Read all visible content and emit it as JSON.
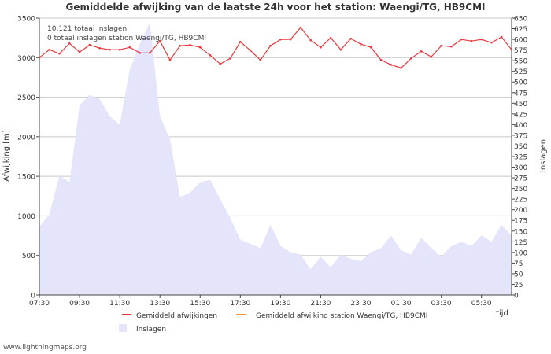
{
  "chart_data": {
    "type": "line",
    "title": "Gemiddelde afwijking van de laatste 24h voor het station: Waengi/TG, HB9CMI",
    "ylabel_left": "Afwijking  [m]",
    "ylabel_right": "Inslagen",
    "xlabel": "tijd",
    "ylim_left": [
      0,
      3500
    ],
    "ylim_right": [
      0,
      650
    ],
    "yticks_left": [
      0,
      500,
      1000,
      1500,
      2000,
      2500,
      3000,
      3500
    ],
    "yticks_right": [
      0,
      25,
      50,
      75,
      100,
      125,
      150,
      175,
      200,
      225,
      250,
      275,
      300,
      325,
      350,
      375,
      400,
      425,
      450,
      475,
      500,
      525,
      550,
      575,
      600,
      625,
      650
    ],
    "x_hours": [
      7.5,
      8,
      8.5,
      9,
      9.5,
      10,
      10.5,
      11,
      11.5,
      12,
      12.5,
      13,
      13.5,
      14,
      14.5,
      15,
      15.5,
      16,
      16.5,
      17,
      17.5,
      18,
      18.5,
      19,
      19.5,
      20,
      20.5,
      21,
      21.5,
      22,
      22.5,
      23,
      23.5,
      24,
      24.5,
      25,
      25.5,
      26,
      26.5,
      27,
      27.5,
      28,
      28.5,
      29,
      29.5,
      30,
      30.5,
      31
    ],
    "xlim_hours": [
      7.5,
      31
    ],
    "xtick_hours": [
      7.5,
      9.5,
      11.5,
      13.5,
      15.5,
      17.5,
      19.5,
      21.5,
      23.5,
      25.5,
      27.5,
      29.5
    ],
    "xtick_labels": [
      "07:30",
      "09:30",
      "11:30",
      "13:30",
      "15:30",
      "17:30",
      "19:30",
      "21:30",
      "23:30",
      "01:30",
      "03:30",
      "05:30"
    ],
    "annotations": [
      "10.121 totaal inslagen",
      "0 totaal inslagen station Waengi/TG, HB9CMI"
    ],
    "series": [
      {
        "name": "Gemiddeld afwijkingen",
        "axis": "left",
        "color": "#e8383d",
        "values": [
          3000,
          3100,
          3050,
          3180,
          3070,
          3160,
          3120,
          3100,
          3100,
          3130,
          3060,
          3060,
          3210,
          2970,
          3150,
          3160,
          3130,
          3030,
          2920,
          2990,
          3200,
          3090,
          2970,
          3150,
          3230,
          3230,
          3380,
          3220,
          3130,
          3250,
          3100,
          3240,
          3170,
          3130,
          2970,
          2910,
          2870,
          2990,
          3080,
          3010,
          3150,
          3140,
          3230,
          3210,
          3230,
          3190,
          3260,
          3100
        ]
      },
      {
        "name": "Gemiddeld afwijking station Waengi/TG, HB9CMI",
        "axis": "left",
        "color": "#f59a3e",
        "values": []
      },
      {
        "name": "Inslagen",
        "axis": "right",
        "color": "#e4e4fb",
        "type": "area",
        "values": [
          160,
          190,
          280,
          265,
          445,
          470,
          460,
          420,
          400,
          530,
          590,
          640,
          420,
          365,
          230,
          240,
          265,
          270,
          225,
          180,
          130,
          120,
          110,
          165,
          115,
          100,
          95,
          60,
          90,
          65,
          95,
          85,
          80,
          100,
          110,
          140,
          105,
          95,
          135,
          110,
          90,
          115,
          125,
          115,
          140,
          125,
          165,
          140
        ]
      }
    ]
  },
  "footer": {
    "credit": "www.lightningmaps.org"
  }
}
